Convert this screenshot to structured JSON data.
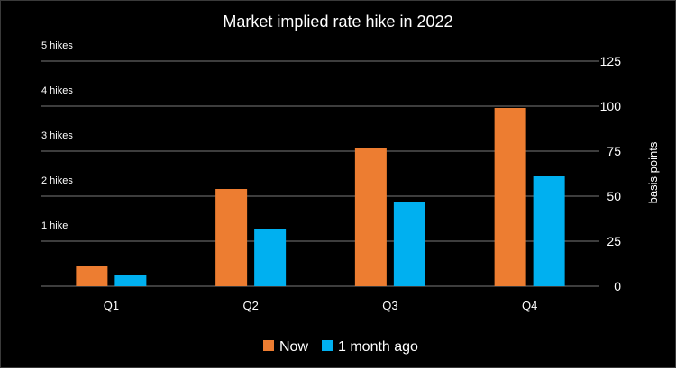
{
  "chart_data": {
    "type": "bar",
    "title": "Market implied rate hike in 2022",
    "categories": [
      "Q1",
      "Q2",
      "Q3",
      "Q4"
    ],
    "series": [
      {
        "name": "Now",
        "color": "#ED7D31",
        "values": [
          11,
          54,
          77,
          99
        ]
      },
      {
        "name": "1 month ago",
        "color": "#00B0F0",
        "values": [
          6,
          32,
          47,
          61
        ]
      }
    ],
    "ylabel": "basis points",
    "ylim": [
      0,
      125
    ],
    "yticks": [
      0,
      25,
      50,
      75,
      100,
      125
    ],
    "left_labels": [
      {
        "value": 25,
        "text": "1 hike"
      },
      {
        "value": 50,
        "text": "2 hikes"
      },
      {
        "value": 75,
        "text": "3 hikes"
      },
      {
        "value": 100,
        "text": "4 hikes"
      },
      {
        "value": 125,
        "text": "5 hikes"
      }
    ],
    "grid": true,
    "legend_position": "bottom-center"
  }
}
